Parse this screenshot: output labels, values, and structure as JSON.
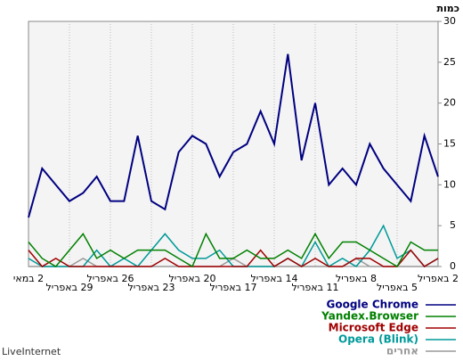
{
  "chart_data": {
    "type": "line",
    "y_label": "כמות",
    "source": "LiveInternet",
    "categories": [
      "2 במאי",
      null,
      null,
      "29 באפריל",
      null,
      null,
      "26 באפריל",
      null,
      null,
      "23 באפריל",
      null,
      null,
      "20 באפריל",
      null,
      null,
      "17 באפריל",
      null,
      null,
      "14 באפריל",
      null,
      null,
      "11 באפריל",
      null,
      null,
      "8 באפריל",
      null,
      null,
      "5 באפריל",
      null,
      null,
      "2 באפריל"
    ],
    "series": [
      {
        "name": "Google Chrome",
        "color": "#000080",
        "values": [
          6,
          12,
          10,
          8,
          9,
          11,
          8,
          8,
          16,
          8,
          7,
          14,
          16,
          15,
          11,
          14,
          15,
          19,
          15,
          26,
          13,
          20,
          10,
          12,
          10,
          15,
          12,
          10,
          8,
          16,
          11
        ]
      },
      {
        "name": "Yandex.Browser",
        "color": "#008000",
        "values": [
          3,
          1,
          0,
          2,
          4,
          1,
          2,
          1,
          2,
          2,
          2,
          1,
          0,
          4,
          1,
          1,
          2,
          1,
          1,
          2,
          1,
          4,
          1,
          3,
          3,
          2,
          1,
          0,
          3,
          2,
          2
        ]
      },
      {
        "name": "Microsoft Edge",
        "color": "#a00000",
        "values": [
          2,
          0,
          1,
          0,
          0,
          0,
          0,
          0,
          0,
          0,
          1,
          0,
          0,
          0,
          0,
          0,
          0,
          2,
          0,
          1,
          0,
          1,
          0,
          0,
          1,
          1,
          0,
          0,
          2,
          0,
          1
        ]
      },
      {
        "name": "Opera (Blink)",
        "color": "#009999",
        "values": [
          1,
          0,
          0,
          0,
          0,
          2,
          0,
          1,
          0,
          2,
          4,
          2,
          1,
          1,
          2,
          0,
          0,
          0,
          0,
          1,
          0,
          3,
          0,
          1,
          0,
          2,
          5,
          1,
          2,
          0,
          1
        ]
      },
      {
        "name": "אחרים",
        "color": "#999999",
        "values": [
          0,
          0,
          0,
          0,
          1,
          0,
          0,
          0,
          0,
          0,
          0,
          0,
          0,
          0,
          0,
          1,
          0,
          0,
          0,
          0,
          0,
          0,
          0,
          0,
          1,
          0,
          0,
          0,
          0,
          0,
          0
        ]
      }
    ],
    "ylim": [
      0,
      30
    ],
    "yticks": [
      0,
      5,
      10,
      15,
      20,
      25,
      30
    ],
    "grid": "x"
  }
}
